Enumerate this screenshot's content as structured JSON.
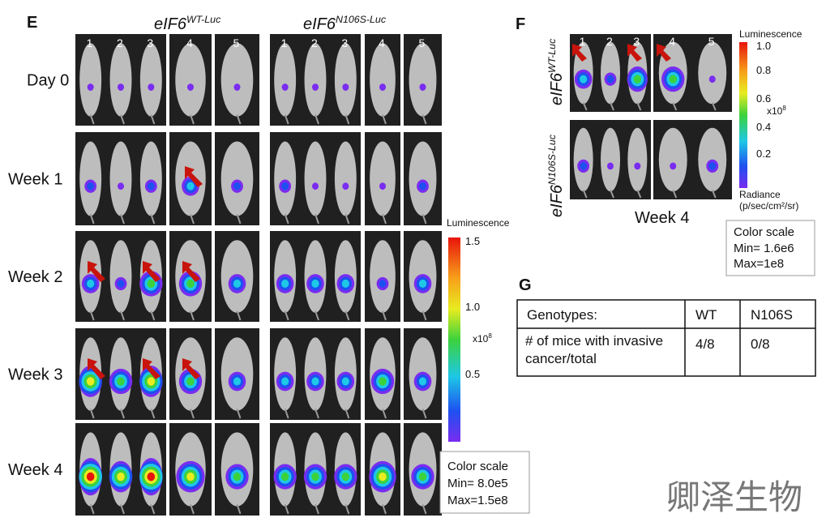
{
  "panel_e": {
    "label": "E",
    "groups": [
      {
        "name": "eIF6",
        "sup": "WT-Luc",
        "mice": [
          "1",
          "2",
          "3",
          "4",
          "5"
        ]
      },
      {
        "name": "eIF6",
        "sup": "N106S-Luc",
        "mice": [
          "1",
          "2",
          "3",
          "4",
          "5"
        ]
      }
    ],
    "rows": [
      "Day 0",
      "Week 1",
      "Week 2",
      "Week 3",
      "Week 4"
    ],
    "colorbar": {
      "title": "Luminescence",
      "ticks": [
        "1.5",
        "1.0",
        "0.5"
      ],
      "unit": "x10",
      "unit_exp": "8"
    },
    "scale": {
      "title": "Color scale",
      "min": "Min= 8.0e5",
      "max": "Max=1.5e8"
    }
  },
  "panel_f": {
    "label": "F",
    "mice": [
      "1",
      "2",
      "3",
      "4",
      "5"
    ],
    "row_labels": [
      {
        "name": "eIF6",
        "sup": "WT-Luc"
      },
      {
        "name": "eIF6",
        "sup": "N106S-Luc"
      }
    ],
    "caption": "Week 4",
    "colorbar": {
      "title": "Luminescence",
      "ticks": [
        "1.0",
        "0.8",
        "0.6",
        "0.4",
        "0.2"
      ],
      "unit": "x10",
      "unit_exp": "8",
      "radiance": "Radiance",
      "radiance_unit": "(p/sec/cm²/sr)"
    },
    "scale": {
      "title": "Color scale",
      "min": "Min= 1.6e6",
      "max": "Max=1e8"
    }
  },
  "panel_g": {
    "label": "G",
    "table": {
      "rows": [
        [
          "Genotypes:",
          "WT",
          "N106S"
        ],
        [
          "# of mice with invasive cancer/total",
          "4/8",
          "0/8"
        ]
      ]
    }
  },
  "watermark": "卿泽生物"
}
